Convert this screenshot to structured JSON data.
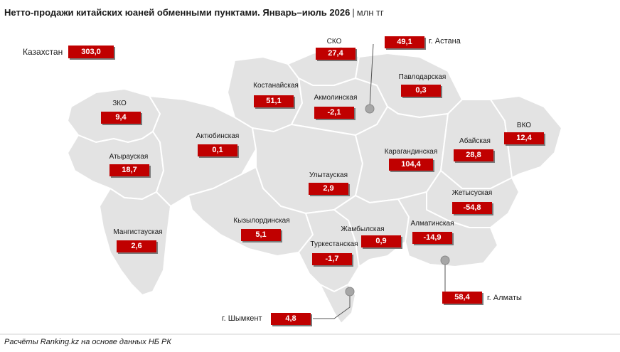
{
  "header": {
    "title": "Нетто-продажи китайских юаней обменными пунктами. Январь–июль 2026",
    "separator": "|",
    "unit": "млн тг"
  },
  "total": {
    "label": "Казахстан",
    "value": "303,0"
  },
  "regions": [
    {
      "id": "sko",
      "label": "СКО",
      "value": "27,4"
    },
    {
      "id": "zko",
      "label": "ЗКО",
      "value": "9,4"
    },
    {
      "id": "kostanay",
      "label": "Костанайская",
      "value": "51,1"
    },
    {
      "id": "akmola",
      "label": "Акмолинская",
      "value": "-2,1"
    },
    {
      "id": "pavlodar",
      "label": "Павлодарская",
      "value": "0,3"
    },
    {
      "id": "aktobe",
      "label": "Актюбинская",
      "value": "0,1"
    },
    {
      "id": "atyrau",
      "label": "Атырауская",
      "value": "18,7"
    },
    {
      "id": "karaganda",
      "label": "Карагандинская",
      "value": "104,4"
    },
    {
      "id": "abai",
      "label": "Абайская",
      "value": "28,8"
    },
    {
      "id": "vko",
      "label": "ВКО",
      "value": "12,4"
    },
    {
      "id": "ulytau",
      "label": "Улытауская",
      "value": "2,9"
    },
    {
      "id": "zhetysu",
      "label": "Жетысуская",
      "value": "-54,8"
    },
    {
      "id": "mangystau",
      "label": "Мангистауская",
      "value": "2,6"
    },
    {
      "id": "kyzylorda",
      "label": "Кызылординская",
      "value": "5,1"
    },
    {
      "id": "zhambyl",
      "label": "Жамбылская",
      "value": "0,9"
    },
    {
      "id": "almaty-obl",
      "label": "Алматинская",
      "value": "-14,9"
    },
    {
      "id": "turkestan",
      "label": "Туркестанская",
      "value": "-1,7"
    }
  ],
  "cities": [
    {
      "id": "astana",
      "label": "г. Астана",
      "value": "49,1"
    },
    {
      "id": "almaty",
      "label": "г. Алматы",
      "value": "58,4"
    },
    {
      "id": "shymkent",
      "label": "г. Шымкент",
      "value": "4,8"
    }
  ],
  "footer": {
    "source": "Расчёты Ranking.kz на основе данных НБ РК"
  },
  "colors": {
    "map_fill": "#e3e3e3",
    "border": "#ffffff",
    "accent": "#c00000",
    "marker": "#a6a6a6"
  }
}
